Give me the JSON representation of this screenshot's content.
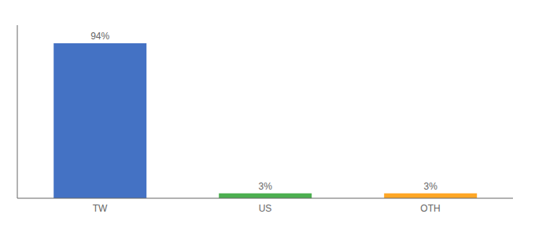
{
  "chart_data": {
    "type": "bar",
    "categories": [
      "TW",
      "US",
      "OTH"
    ],
    "values": [
      94,
      3,
      3
    ],
    "value_labels": [
      "94%",
      "3%",
      "3%"
    ],
    "colors": [
      "#4472C4",
      "#4CAF50",
      "#FFA726"
    ],
    "ylim": [
      0,
      105
    ],
    "data_labels": true,
    "tick_labels": "x",
    "grid": false
  }
}
